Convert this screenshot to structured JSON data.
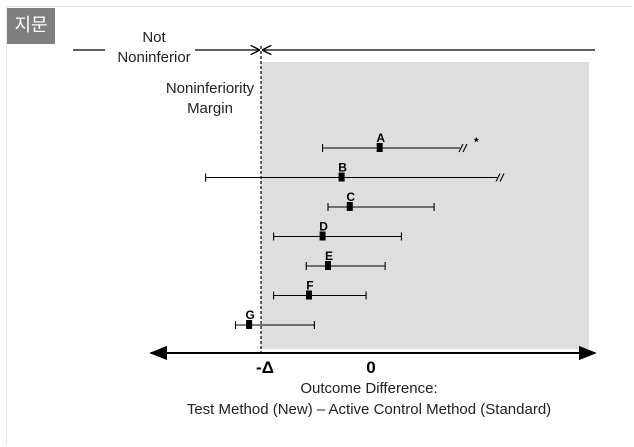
{
  "tag": {
    "text": "지문"
  },
  "labels": {
    "not_noninferior_1": "Not",
    "not_noninferior_2": "Noninferior",
    "margin_1": "Noninferiority",
    "margin_2": "Margin",
    "x_title_1": "Outcome Difference:",
    "x_title_2": "Test Method (New) – Active Control Method (Standard)"
  },
  "axis": {
    "ticks": [
      {
        "label": "-Δ",
        "value": -1
      },
      {
        "label": "0",
        "value": 0
      }
    ],
    "xlim": [
      -4.2,
      8.6
    ]
  },
  "colors": {
    "shade": "#dedede",
    "line": "#000000"
  },
  "intervals": [
    {
      "label": "A",
      "estimate": 3.4,
      "lower": 1.3,
      "upper": 7.2,
      "break_upper": true,
      "asterisk": true
    },
    {
      "label": "B",
      "estimate": 2.0,
      "lower": -3.0,
      "upper": 13.0,
      "break_upper": true,
      "asterisk": false
    },
    {
      "label": "C",
      "estimate": 2.3,
      "lower": 1.5,
      "upper": 5.4,
      "break_upper": false,
      "asterisk": false
    },
    {
      "label": "D",
      "estimate": 1.3,
      "lower": -0.5,
      "upper": 4.2,
      "break_upper": false,
      "asterisk": false
    },
    {
      "label": "E",
      "estimate": 1.5,
      "lower": 0.7,
      "upper": 3.6,
      "break_upper": false,
      "asterisk": false
    },
    {
      "label": "F",
      "estimate": 0.8,
      "lower": -0.5,
      "upper": 2.9,
      "break_upper": false,
      "asterisk": false
    },
    {
      "label": "G",
      "estimate": -1.4,
      "lower": -1.9,
      "upper": 1.0,
      "break_upper": false,
      "asterisk": false
    }
  ]
}
